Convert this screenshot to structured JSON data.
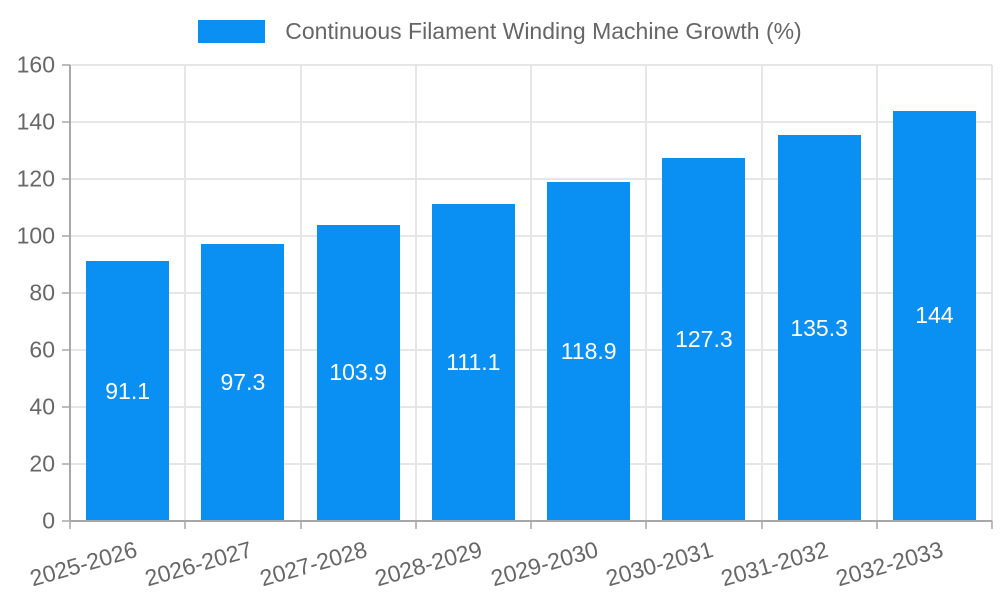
{
  "legend": {
    "label": "Continuous Filament Winding Machine Growth (%)"
  },
  "chart_data": {
    "type": "bar",
    "title": "",
    "legend_label": "Continuous Filament Winding Machine Growth (%)",
    "categories": [
      "2025-2026",
      "2026-2027",
      "2027-2028",
      "2028-2029",
      "2029-2030",
      "2030-2031",
      "2031-2032",
      "2032-2033"
    ],
    "values": [
      91.1,
      97.3,
      103.9,
      111.1,
      118.9,
      127.3,
      135.3,
      144
    ],
    "value_labels": [
      "91.1",
      "97.3",
      "103.9",
      "111.1",
      "118.9",
      "127.3",
      "135.3",
      "144"
    ],
    "xlabel": "",
    "ylabel": "",
    "ylim": [
      0,
      160
    ],
    "ytick_step": 20,
    "yticks": [
      0,
      20,
      40,
      60,
      80,
      100,
      120,
      140,
      160
    ],
    "grid": true,
    "legend_position": "top-center",
    "value_label_position": "center-of-bar",
    "x_label_rotation_deg": -16,
    "bar_color": "#0a90f2",
    "value_label_color": "#ffffff",
    "axis_text_color": "#676767",
    "legend_text_color": "#666666",
    "grid_color": "#e6e6e6",
    "axis_line_color": "#a8a8a8",
    "tick_color": "#bdbdbd",
    "background_color": "#ffffff"
  }
}
